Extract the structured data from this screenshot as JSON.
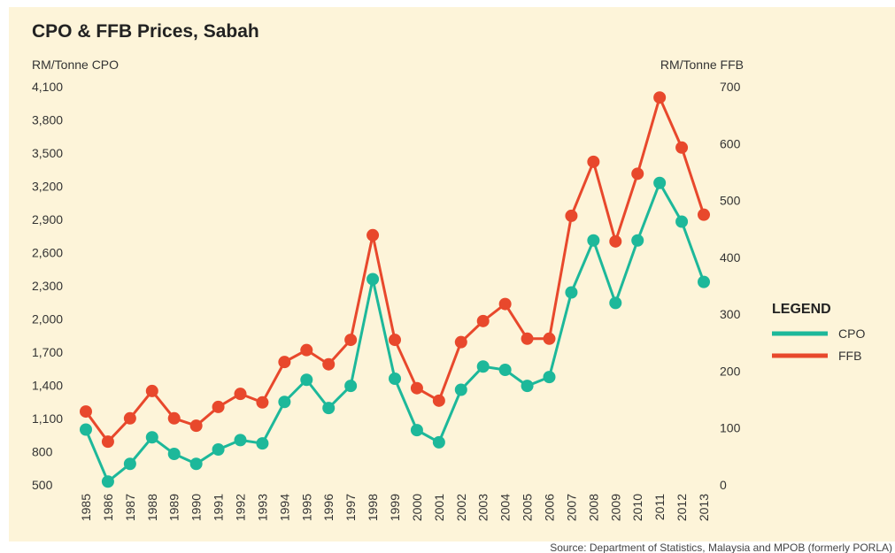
{
  "chart_data": {
    "type": "line",
    "title": "CPO & FFB Prices, Sabah",
    "y_label": "RM/Tonne CPO",
    "y2_label": "RM/Tonne FFB",
    "legend_title": "LEGEND",
    "source": "Source: Department of Statistics, Malaysia and MPOB (formerly PORLA)",
    "x": [
      1985,
      1986,
      1987,
      1988,
      1989,
      1990,
      1991,
      1992,
      1993,
      1994,
      1995,
      1996,
      1997,
      1998,
      1999,
      2000,
      2001,
      2002,
      2003,
      2004,
      2005,
      2006,
      2007,
      2008,
      2009,
      2010,
      2011,
      2012,
      2013
    ],
    "xlim": [
      1985,
      2013
    ],
    "ylim": [
      500,
      4100
    ],
    "yticks": [
      500,
      800,
      {
        "value": 1100,
        "label": "1,100"
      },
      {
        "value": 1400,
        "label": "1,400"
      },
      {
        "value": 1700,
        "label": "1,700"
      },
      {
        "value": 2000,
        "label": "2,000"
      },
      {
        "value": 2300,
        "label": "2,300"
      },
      {
        "value": 2600,
        "label": "2,600"
      },
      {
        "value": 2900,
        "label": "2,900"
      },
      {
        "value": 3200,
        "label": "3,200"
      },
      {
        "value": 3500,
        "label": "3,500"
      },
      {
        "value": 3800,
        "label": "3,800"
      },
      {
        "value": 4100,
        "label": "4,100"
      }
    ],
    "y2lim": [
      0,
      700
    ],
    "y2ticks": [
      0,
      100,
      200,
      300,
      400,
      500,
      600,
      700
    ],
    "grid": false,
    "legend": "right",
    "series": [
      {
        "name": "CPO",
        "color": "#1db89a",
        "values": [
          1000,
          530,
          690,
          930,
          780,
          690,
          820,
          905,
          875,
          1250,
          1450,
          1195,
          1395,
          2360,
          1460,
          995,
          885,
          1360,
          1570,
          1540,
          1395,
          1475,
          2240,
          2710,
          2145,
          2710,
          3230,
          2880,
          2335
        ]
      },
      {
        "name": "FFB",
        "color": "#e8482c",
        "axis": "y2",
        "values": [
          129,
          76,
          117,
          165,
          117,
          104,
          137,
          160,
          145,
          216,
          237,
          212,
          255,
          439,
          255,
          170,
          148,
          251,
          288,
          318,
          257,
          257,
          473,
          568,
          428,
          547,
          681,
          593,
          475
        ]
      }
    ]
  }
}
